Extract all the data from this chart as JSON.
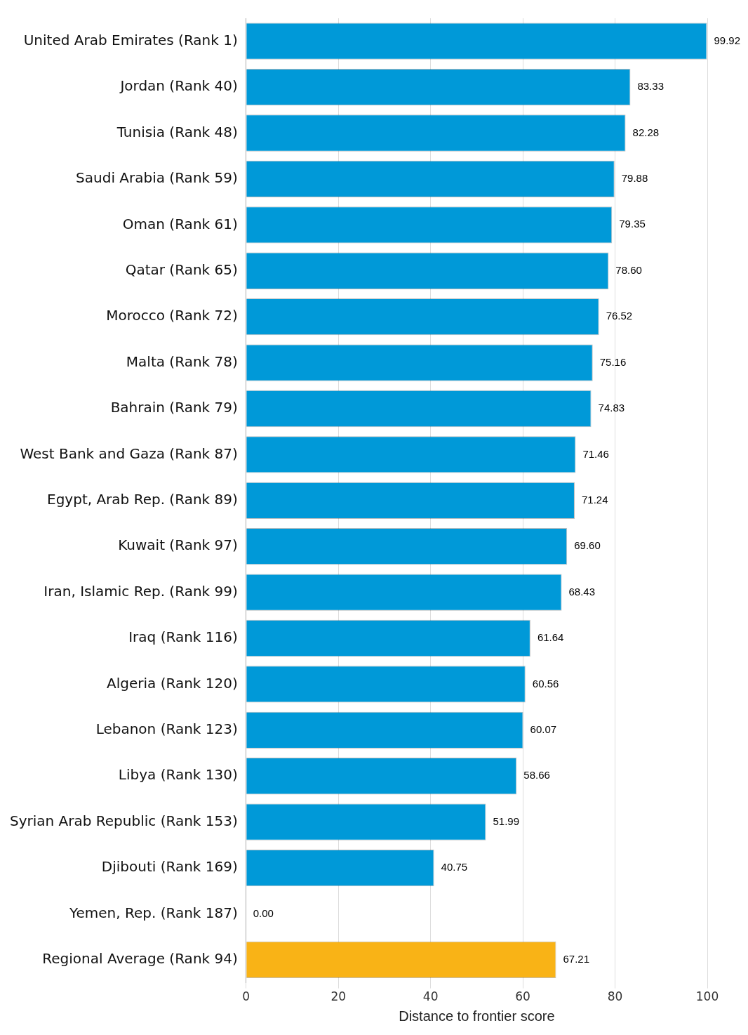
{
  "chart_data": {
    "type": "bar",
    "orientation": "horizontal",
    "xlabel": "Distance to frontier score",
    "categories": [
      "United Arab Emirates (Rank 1)",
      "Jordan (Rank 40)",
      "Tunisia (Rank 48)",
      "Saudi Arabia (Rank 59)",
      "Oman (Rank 61)",
      "Qatar (Rank 65)",
      "Morocco (Rank 72)",
      "Malta (Rank 78)",
      "Bahrain (Rank 79)",
      "West Bank and Gaza (Rank 87)",
      "Egypt, Arab Rep. (Rank 89)",
      "Kuwait (Rank 97)",
      "Iran, Islamic Rep. (Rank 99)",
      "Iraq (Rank 116)",
      "Algeria (Rank 120)",
      "Lebanon (Rank 123)",
      "Libya (Rank 130)",
      "Syrian Arab Republic (Rank 153)",
      "Djibouti (Rank 169)",
      "Yemen, Rep. (Rank 187)",
      "Regional Average (Rank 94)"
    ],
    "values": [
      99.92,
      83.33,
      82.28,
      79.88,
      79.35,
      78.6,
      76.52,
      75.16,
      74.83,
      71.46,
      71.24,
      69.6,
      68.43,
      61.64,
      60.56,
      60.07,
      58.66,
      51.99,
      40.75,
      0,
      67.21
    ],
    "value_labels": [
      "99.92",
      "83.33",
      "82.28",
      "79.88",
      "79.35",
      "78.60",
      "76.52",
      "75.16",
      "74.83",
      "71.46",
      "71.24",
      "69.60",
      "68.43",
      "61.64",
      "60.56",
      "60.07",
      "58.66",
      "51.99",
      "40.75",
      "0.00",
      "67.21"
    ],
    "colors": [
      "#0099d8",
      "#0099d8",
      "#0099d8",
      "#0099d8",
      "#0099d8",
      "#0099d8",
      "#0099d8",
      "#0099d8",
      "#0099d8",
      "#0099d8",
      "#0099d8",
      "#0099d8",
      "#0099d8",
      "#0099d8",
      "#0099d8",
      "#0099d8",
      "#0099d8",
      "#0099d8",
      "#0099d8",
      "#0099d8",
      "#f9b316"
    ],
    "xlim": [
      0,
      100
    ],
    "xticks": [
      0,
      20,
      40,
      60,
      80,
      100
    ],
    "grid": "x"
  }
}
